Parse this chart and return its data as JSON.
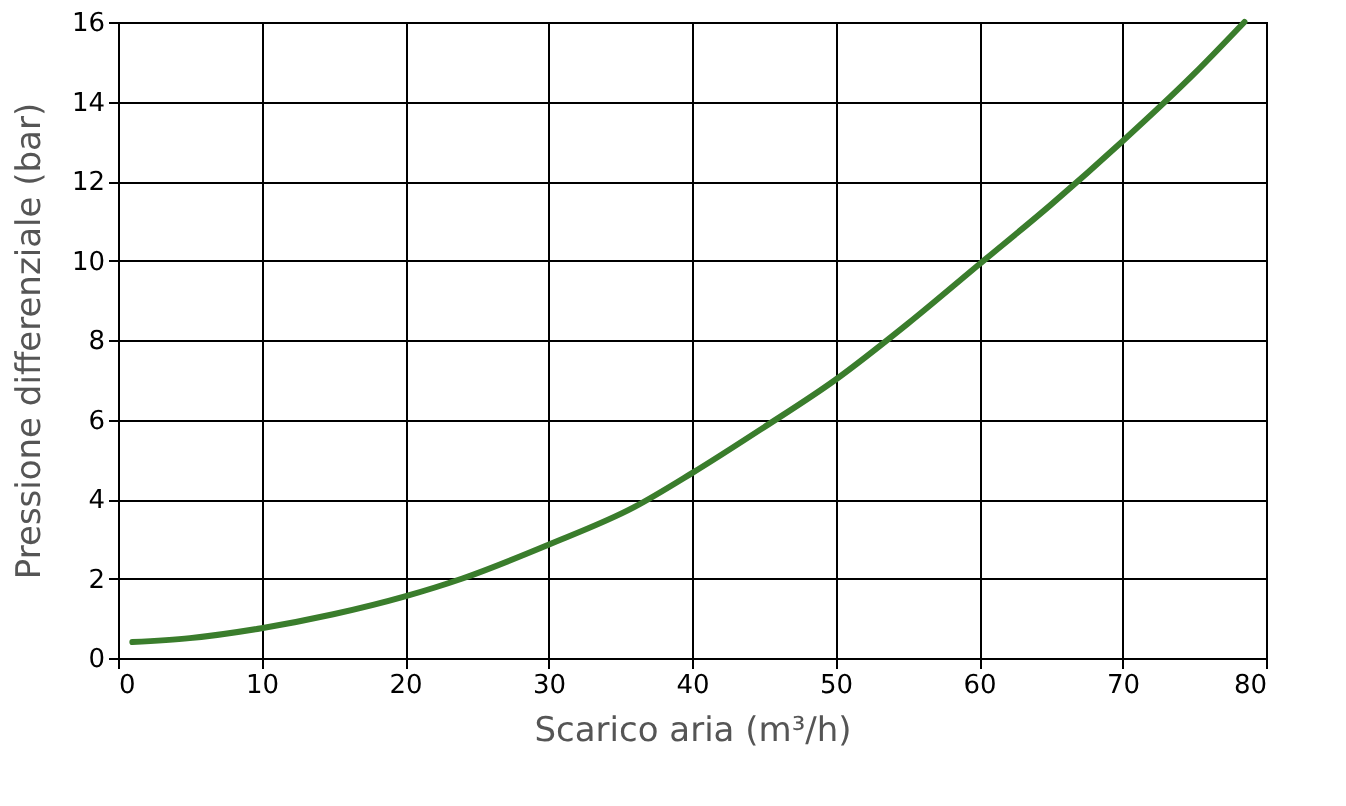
{
  "chart_data": {
    "type": "line",
    "xlabel": "Scarico aria (m³/h)",
    "ylabel": "Pressione differenziale (bar)",
    "x": [
      1,
      5,
      10,
      15,
      20,
      24,
      30,
      36,
      40,
      45,
      50,
      55,
      60,
      65,
      70,
      75,
      78.5
    ],
    "series": [
      {
        "color": "#3a7d2c",
        "values": [
          0.4,
          0.5,
          0.75,
          1.1,
          1.55,
          2.0,
          2.85,
          3.8,
          4.65,
          5.8,
          7.0,
          8.4,
          9.9,
          11.4,
          13.0,
          14.7,
          16.0
        ]
      }
    ],
    "xlim": [
      0,
      80
    ],
    "xticks": [
      0,
      10,
      20,
      30,
      40,
      50,
      60,
      70,
      80
    ],
    "ylim": [
      0,
      16
    ],
    "yticks": [
      0,
      2,
      4,
      6,
      8,
      10,
      12,
      14,
      16
    ],
    "grid": true,
    "marker": "none",
    "line_style": "solid"
  }
}
